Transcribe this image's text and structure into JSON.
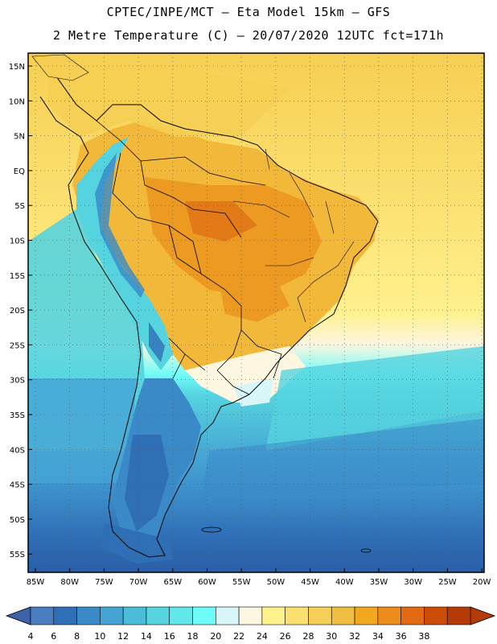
{
  "title_line1": "CPTEC/INPE/MCT –  Eta Model 15km – GFS",
  "title_line2": "2 Metre Temperature (C) – 20/07/2020 12UTC fct=171h",
  "lat_labels": [
    "15N",
    "10N",
    "5N",
    "EQ",
    "5S",
    "10S",
    "15S",
    "20S",
    "25S",
    "30S",
    "35S",
    "40S",
    "45S",
    "50S",
    "55S"
  ],
  "lon_labels": [
    "85W",
    "80W",
    "75W",
    "70W",
    "65W",
    "60W",
    "55W",
    "50W",
    "45W",
    "40W",
    "35W",
    "30W",
    "25W",
    "20W"
  ],
  "colorbar": {
    "labels": [
      "4",
      "6",
      "8",
      "10",
      "12",
      "14",
      "16",
      "18",
      "20",
      "22",
      "24",
      "26",
      "28",
      "30",
      "32",
      "34",
      "36",
      "38"
    ],
    "colors": [
      "#4a7ec0",
      "#2f6fb6",
      "#3a8ac8",
      "#46a4d4",
      "#4bbdd8",
      "#55d3de",
      "#62e8ea",
      "#6ffbf8",
      "#d8f6f8",
      "#fdf6e0",
      "#fff18e",
      "#fbe070",
      "#f5cf57",
      "#efbd3f",
      "#f2a81e",
      "#ec8c1c",
      "#e26a13",
      "#cc4d0a",
      "#b43a08"
    ],
    "left_arrow_color": "#3e62a8",
    "right_arrow_color": "#b43a08"
  }
}
